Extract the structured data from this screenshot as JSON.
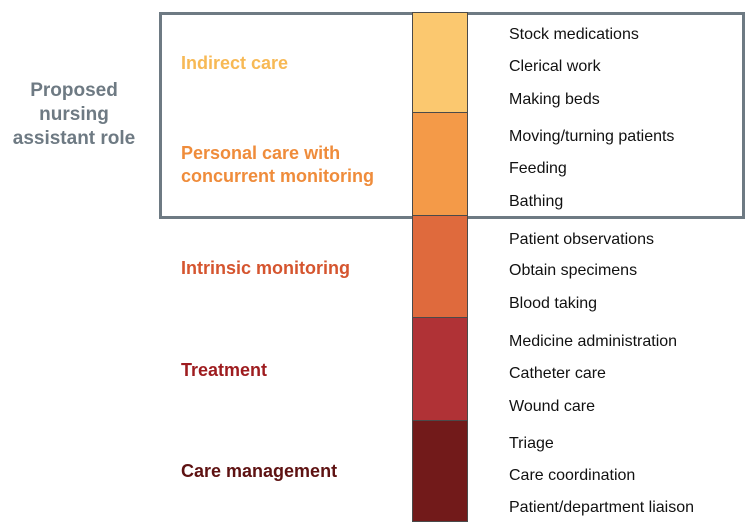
{
  "side_label": "Proposed nursing assistant role",
  "categories": [
    {
      "label": "Indirect care",
      "color": "#fbc86f",
      "label_color": "#f7b955",
      "items": [
        "Stock medications",
        "Clerical work",
        "Making beds"
      ]
    },
    {
      "label": "Personal care with concurrent monitoring",
      "color": "#f49a48",
      "label_color": "#ef8c3b",
      "items": [
        "Moving/turning patients",
        "Feeding",
        "Bathing"
      ]
    },
    {
      "label": "Intrinsic monitoring",
      "color": "#df6a3d",
      "label_color": "#d5552f",
      "items": [
        "Patient observations",
        "Obtain specimens",
        "Blood taking"
      ]
    },
    {
      "label": "Treatment",
      "color": "#b03236",
      "label_color": "#9e1c1f",
      "items": [
        "Medicine administration",
        "Catheter care",
        "Wound care"
      ]
    },
    {
      "label": "Care management",
      "color": "#721a1a",
      "label_color": "#5e1212",
      "items": [
        "Triage",
        "Care coordination",
        "Patient/department liaison"
      ]
    }
  ]
}
